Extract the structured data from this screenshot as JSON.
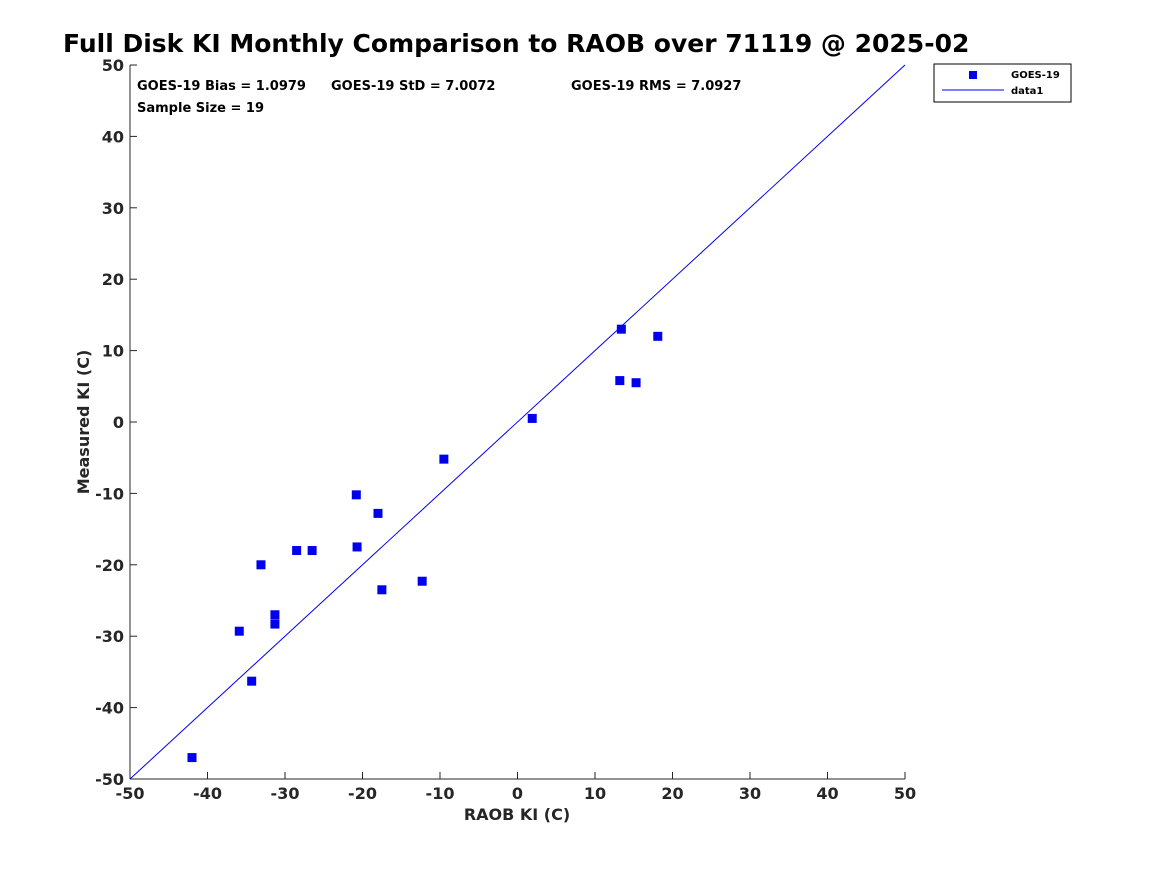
{
  "chart_data": {
    "type": "scatter",
    "title": "Full Disk KI Monthly Comparison to RAOB over 71119 @ 2025-02",
    "xlabel": "RAOB KI (C)",
    "ylabel": "Measured KI (C)",
    "xlim": [
      -50,
      50
    ],
    "ylim": [
      -50,
      50
    ],
    "xticks": [
      -50,
      -40,
      -30,
      -20,
      -10,
      0,
      10,
      20,
      30,
      40,
      50
    ],
    "yticks": [
      -50,
      -40,
      -30,
      -20,
      -10,
      0,
      10,
      20,
      30,
      40,
      50
    ],
    "xtick_labels": [
      "-50",
      "-40",
      "-30",
      "-20",
      "-10",
      "0",
      "10",
      "20",
      "30",
      "40",
      "50"
    ],
    "ytick_labels": [
      "-50",
      "-40",
      "-30",
      "-20",
      "-10",
      "0",
      "10",
      "20",
      "30",
      "40",
      "50"
    ],
    "grid": false,
    "legend_position": "top-right",
    "series": [
      {
        "name": "GOES-19",
        "kind": "scatter",
        "marker": "square",
        "color": "#0000ee",
        "x": [
          -42.0,
          -35.9,
          -34.3,
          -33.1,
          -31.3,
          -31.3,
          -28.5,
          -26.5,
          -20.8,
          -20.7,
          -18.0,
          -17.5,
          -12.3,
          -9.5,
          1.9,
          13.2,
          13.4,
          15.3,
          18.1
        ],
        "y": [
          -47.0,
          -29.3,
          -36.3,
          -20.0,
          -27.0,
          -28.3,
          -18.0,
          -18.0,
          -10.2,
          -17.5,
          -12.8,
          -23.5,
          -22.3,
          -5.2,
          0.5,
          5.8,
          13.0,
          5.5,
          12.0
        ]
      },
      {
        "name": "data1",
        "kind": "line",
        "color": "#0000ee",
        "x": [
          -50,
          50
        ],
        "y": [
          -50,
          50
        ]
      }
    ],
    "annotations": {
      "bias": "GOES-19 Bias = 1.0979",
      "std": "GOES-19 StD = 7.0072",
      "rms": "GOES-19 RMS = 7.0927",
      "sample": "Sample Size = 19"
    }
  }
}
